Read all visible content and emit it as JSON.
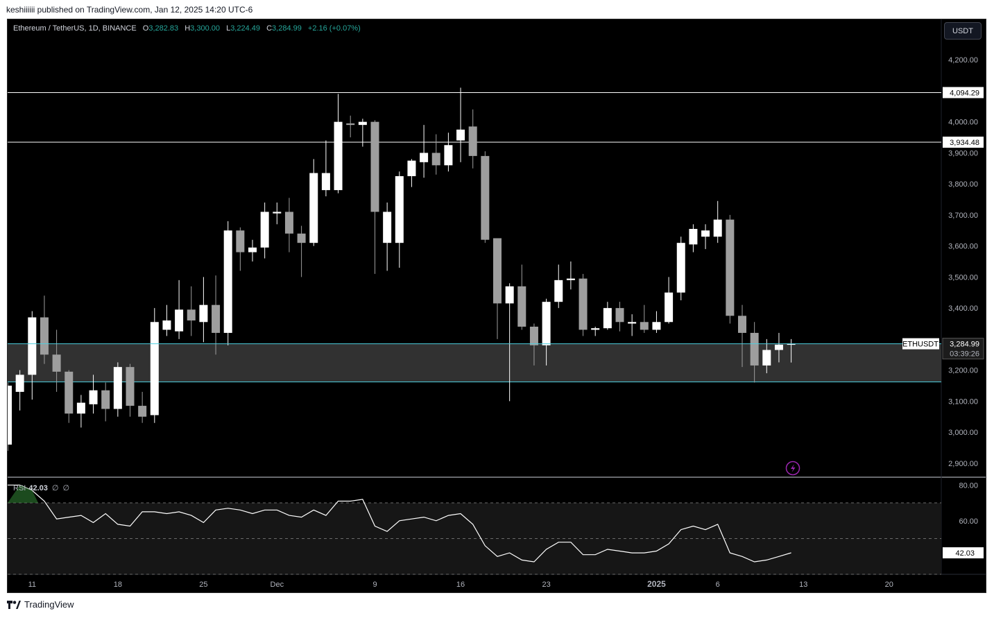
{
  "header": {
    "published_text": "keshiiiiii published on TradingView.com, Jan 12, 2025 14:20 UTC-6"
  },
  "legend": {
    "symbol": "Ethereum / TetherUS, 1D, BINANCE",
    "open_label": "O",
    "open": "3,282.83",
    "high_label": "H",
    "high": "3,300.00",
    "low_label": "L",
    "low": "3,224.49",
    "close_label": "C",
    "close": "3,284.99",
    "change": "+2.16 (+0.07%)"
  },
  "currency_button": "USDT",
  "rsi_legend": {
    "name": "RSI",
    "value": "42.03",
    "param1": "∅",
    "param2": "∅"
  },
  "footer": {
    "brand": "TradingView"
  },
  "colors": {
    "background": "#000000",
    "up_candle": "#ffffff",
    "down_candle": "#9e9e9e",
    "zone_line": "#4dd0e1",
    "zone_fill": "#3a3a3a",
    "accent_icon": "#9c27b0"
  },
  "chart_data": [
    {
      "type": "candlestick",
      "ylim": [
        2855,
        4330
      ],
      "y_ticks": [
        "4,200.00",
        "4,000.00",
        "3,900.00",
        "3,800.00",
        "3,700.00",
        "3,600.00",
        "3,500.00",
        "3,400.00",
        "3,200.00",
        "3,100.00",
        "3,000.00",
        "2,900.00"
      ],
      "x_tick_labels": [
        {
          "label": "11",
          "index": 2
        },
        {
          "label": "18",
          "index": 9
        },
        {
          "label": "25",
          "index": 16
        },
        {
          "label": "Dec",
          "index": 22
        },
        {
          "label": "9",
          "index": 30
        },
        {
          "label": "16",
          "index": 37
        },
        {
          "label": "23",
          "index": 44
        },
        {
          "label": "2025",
          "index": 53
        },
        {
          "label": "6",
          "index": 58
        },
        {
          "label": "13",
          "index": 65
        },
        {
          "label": "20",
          "index": 72
        }
      ],
      "horizontal_lines": [
        {
          "value": 4094.29,
          "label": "4,094.29"
        },
        {
          "value": 3934.48,
          "label": "3,934.48"
        }
      ],
      "support_zone": {
        "top": 3284.99,
        "bottom": 3162
      },
      "last_price": {
        "symbol": "ETHUSDT",
        "value": 3284.99,
        "label": "3,284.99",
        "countdown": "03:39:26"
      },
      "candles": [
        {
          "o": 2960,
          "h": 3160,
          "l": 2940,
          "c": 3150
        },
        {
          "o": 3130,
          "h": 3200,
          "l": 3070,
          "c": 3185
        },
        {
          "o": 3185,
          "h": 3390,
          "l": 3105,
          "c": 3370
        },
        {
          "o": 3370,
          "h": 3440,
          "l": 3220,
          "c": 3250
        },
        {
          "o": 3250,
          "h": 3330,
          "l": 3130,
          "c": 3195
        },
        {
          "o": 3195,
          "h": 3200,
          "l": 3030,
          "c": 3060
        },
        {
          "o": 3060,
          "h": 3120,
          "l": 3015,
          "c": 3095
        },
        {
          "o": 3090,
          "h": 3185,
          "l": 3060,
          "c": 3135
        },
        {
          "o": 3135,
          "h": 3160,
          "l": 3035,
          "c": 3075
        },
        {
          "o": 3075,
          "h": 3225,
          "l": 3050,
          "c": 3210
        },
        {
          "o": 3210,
          "h": 3220,
          "l": 3050,
          "c": 3085
        },
        {
          "o": 3085,
          "h": 3130,
          "l": 3030,
          "c": 3050
        },
        {
          "o": 3055,
          "h": 3400,
          "l": 3030,
          "c": 3355
        },
        {
          "o": 3330,
          "h": 3410,
          "l": 3310,
          "c": 3360
        },
        {
          "o": 3325,
          "h": 3490,
          "l": 3300,
          "c": 3395
        },
        {
          "o": 3395,
          "h": 3470,
          "l": 3310,
          "c": 3360
        },
        {
          "o": 3355,
          "h": 3500,
          "l": 3290,
          "c": 3410
        },
        {
          "o": 3410,
          "h": 3505,
          "l": 3250,
          "c": 3320
        },
        {
          "o": 3320,
          "h": 3680,
          "l": 3280,
          "c": 3650
        },
        {
          "o": 3650,
          "h": 3660,
          "l": 3520,
          "c": 3580
        },
        {
          "o": 3580,
          "h": 3620,
          "l": 3550,
          "c": 3595
        },
        {
          "o": 3595,
          "h": 3740,
          "l": 3560,
          "c": 3710
        },
        {
          "o": 3705,
          "h": 3740,
          "l": 3670,
          "c": 3710
        },
        {
          "o": 3710,
          "h": 3755,
          "l": 3580,
          "c": 3640
        },
        {
          "o": 3640,
          "h": 3665,
          "l": 3500,
          "c": 3610
        },
        {
          "o": 3610,
          "h": 3880,
          "l": 3600,
          "c": 3835
        },
        {
          "o": 3780,
          "h": 3940,
          "l": 3760,
          "c": 3835
        },
        {
          "o": 3780,
          "h": 4090,
          "l": 3770,
          "c": 4000
        },
        {
          "o": 3995,
          "h": 4020,
          "l": 3950,
          "c": 3990
        },
        {
          "o": 3990,
          "h": 4010,
          "l": 3920,
          "c": 4000
        },
        {
          "o": 4000,
          "h": 4005,
          "l": 3510,
          "c": 3710
        },
        {
          "o": 3610,
          "h": 3740,
          "l": 3520,
          "c": 3710
        },
        {
          "o": 3610,
          "h": 3840,
          "l": 3530,
          "c": 3825
        },
        {
          "o": 3825,
          "h": 3880,
          "l": 3790,
          "c": 3875
        },
        {
          "o": 3870,
          "h": 3990,
          "l": 3820,
          "c": 3900
        },
        {
          "o": 3900,
          "h": 3960,
          "l": 3830,
          "c": 3860
        },
        {
          "o": 3860,
          "h": 3965,
          "l": 3840,
          "c": 3925
        },
        {
          "o": 3940,
          "h": 4110,
          "l": 3870,
          "c": 3975
        },
        {
          "o": 3985,
          "h": 4040,
          "l": 3850,
          "c": 3890
        },
        {
          "o": 3890,
          "h": 3905,
          "l": 3610,
          "c": 3620
        },
        {
          "o": 3625,
          "h": 3625,
          "l": 3300,
          "c": 3415
        },
        {
          "o": 3415,
          "h": 3480,
          "l": 3100,
          "c": 3470
        },
        {
          "o": 3470,
          "h": 3540,
          "l": 3330,
          "c": 3340
        },
        {
          "o": 3340,
          "h": 3350,
          "l": 3215,
          "c": 3280
        },
        {
          "o": 3280,
          "h": 3430,
          "l": 3215,
          "c": 3420
        },
        {
          "o": 3420,
          "h": 3540,
          "l": 3400,
          "c": 3490
        },
        {
          "o": 3490,
          "h": 3550,
          "l": 3460,
          "c": 3495
        },
        {
          "o": 3495,
          "h": 3510,
          "l": 3310,
          "c": 3330
        },
        {
          "o": 3330,
          "h": 3340,
          "l": 3310,
          "c": 3335
        },
        {
          "o": 3335,
          "h": 3420,
          "l": 3330,
          "c": 3400
        },
        {
          "o": 3400,
          "h": 3420,
          "l": 3325,
          "c": 3355
        },
        {
          "o": 3350,
          "h": 3380,
          "l": 3310,
          "c": 3355
        },
        {
          "o": 3355,
          "h": 3410,
          "l": 3320,
          "c": 3330
        },
        {
          "o": 3330,
          "h": 3390,
          "l": 3320,
          "c": 3355
        },
        {
          "o": 3355,
          "h": 3500,
          "l": 3350,
          "c": 3450
        },
        {
          "o": 3450,
          "h": 3630,
          "l": 3425,
          "c": 3610
        },
        {
          "o": 3605,
          "h": 3670,
          "l": 3580,
          "c": 3655
        },
        {
          "o": 3630,
          "h": 3670,
          "l": 3590,
          "c": 3650
        },
        {
          "o": 3630,
          "h": 3745,
          "l": 3610,
          "c": 3685
        },
        {
          "o": 3685,
          "h": 3700,
          "l": 3350,
          "c": 3375
        },
        {
          "o": 3375,
          "h": 3410,
          "l": 3210,
          "c": 3320
        },
        {
          "o": 3320,
          "h": 3355,
          "l": 3160,
          "c": 3215
        },
        {
          "o": 3215,
          "h": 3300,
          "l": 3190,
          "c": 3265
        },
        {
          "o": 3265,
          "h": 3320,
          "l": 3225,
          "c": 3282
        },
        {
          "o": 3282.83,
          "h": 3300,
          "l": 3224.49,
          "c": 3284.99
        }
      ]
    },
    {
      "type": "line",
      "name": "RSI",
      "ylim": [
        30,
        84
      ],
      "y_ticks": [
        "80.00",
        "60.00"
      ],
      "bands": {
        "upper": 70,
        "middle": 50,
        "lower": 30
      },
      "last_value": 42.03,
      "last_label": "42.03",
      "values": [
        80,
        80,
        77,
        71,
        61,
        62,
        63,
        59,
        64,
        58,
        57,
        65,
        65,
        64,
        65,
        63,
        59,
        66,
        67,
        66,
        64,
        66,
        66,
        63,
        62,
        66,
        63,
        71,
        71,
        72,
        57,
        54,
        60,
        61,
        62,
        60,
        63,
        64,
        58,
        46,
        40,
        42,
        38,
        37,
        44,
        48,
        48,
        41,
        41,
        44,
        43,
        42,
        42,
        43,
        47,
        55,
        57,
        55,
        58,
        42,
        40,
        37,
        38,
        40,
        42.03
      ]
    }
  ]
}
